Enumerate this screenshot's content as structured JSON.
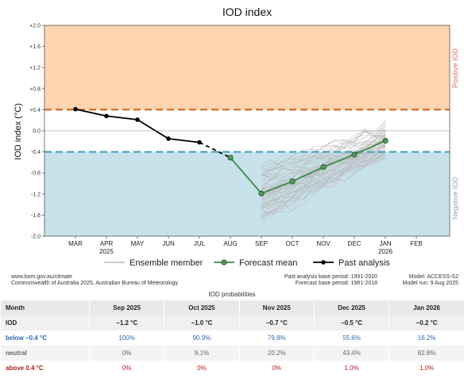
{
  "chart_data": {
    "type": "line",
    "title": "IOD index",
    "ylabel": "IOD index (°C)",
    "ylim": [
      -2.0,
      2.0
    ],
    "yticks": [
      "+2.0",
      "+1.6",
      "+1.2",
      "+0.8",
      "+0.4",
      "0.0",
      "-0.4",
      "-0.8",
      "-1.2",
      "-1.6",
      "-2.0"
    ],
    "ytick_values": [
      2.0,
      1.6,
      1.2,
      0.8,
      0.4,
      0.0,
      -0.4,
      -0.8,
      -1.2,
      -1.6,
      -2.0
    ],
    "categories": [
      "MAR",
      "APR",
      "MAY",
      "JUN",
      "JUL",
      "AUG",
      "SEP",
      "OCT",
      "NOV",
      "DEC",
      "JAN",
      "FEB"
    ],
    "category_years": {
      "APR": "2025",
      "JAN": "2026"
    },
    "thresholds": {
      "positive": 0.4,
      "negative": -0.4
    },
    "zone_labels": {
      "positive": "Positive IOD",
      "negative": "Negative IOD"
    },
    "series": [
      {
        "name": "Past analysis",
        "x": [
          "MAR",
          "APR",
          "MAY",
          "JUN",
          "JUL"
        ],
        "values": [
          0.41,
          0.28,
          0.21,
          -0.15,
          -0.22
        ]
      },
      {
        "name": "Forecast mean",
        "x": [
          "AUG",
          "SEP",
          "OCT",
          "NOV",
          "DEC",
          "JAN"
        ],
        "values": [
          -0.51,
          -1.19,
          -0.96,
          -0.69,
          -0.45,
          -0.19
        ]
      }
    ],
    "ensemble": {
      "name": "Ensemble member",
      "x": [
        "SEP",
        "OCT",
        "NOV",
        "DEC",
        "JAN"
      ],
      "center": [
        -1.19,
        -0.96,
        -0.69,
        -0.45,
        -0.19
      ],
      "spread": [
        0.5,
        0.45,
        0.38,
        0.3,
        0.28
      ]
    },
    "legend": [
      "Ensemble member",
      "Forecast mean",
      "Past analysis"
    ],
    "legend_position": "bottom",
    "grid": false,
    "colors": {
      "positive_zone": "#ffd4b0",
      "negative_zone": "#c7e2ea",
      "positive_line": "#d25f0d",
      "negative_line": "#3f9dbd",
      "forecast": "#3a8a4a",
      "forecast_marker": "#4f9a5a",
      "past": "#000000",
      "ensemble": "#b8b8b8",
      "positive_text": "#e07070",
      "negative_text": "#8aaebe"
    }
  },
  "credits": {
    "left": [
      "www.bom.gov.au/climate",
      "Commonwealth of Australia 2025, Australian Bureau of Meteorology"
    ],
    "mid": [
      "Past analysis base period: 1991-2020",
      "Forecast base period: 1981-2018"
    ],
    "right": [
      "Model: ACCESS-S2",
      "Model run: 9 Aug 2025"
    ]
  },
  "probabilities": {
    "title": "IOD probabilities",
    "header": [
      "Month",
      "Sep 2025",
      "Oct 2025",
      "Nov 2025",
      "Dec 2025",
      "Jan 2026"
    ],
    "rows": {
      "iod": {
        "label": "IOD",
        "values": [
          "−1.2 °C",
          "−1.0 °C",
          "−0.7 °C",
          "−0.5 °C",
          "−0.2 °C"
        ]
      },
      "below": {
        "label": "below −0.4 °C",
        "values": [
          "100%",
          "90.9%",
          "79.8%",
          "55.6%",
          "16.2%"
        ]
      },
      "neutral": {
        "label": "neutral",
        "values": [
          "0%",
          "9.1%",
          "20.2%",
          "43.4%",
          "82.8%"
        ]
      },
      "above": {
        "label": "above 0.4 °C",
        "values": [
          "0%",
          "0%",
          "0%",
          "1.0%",
          "1.0%"
        ]
      }
    }
  }
}
